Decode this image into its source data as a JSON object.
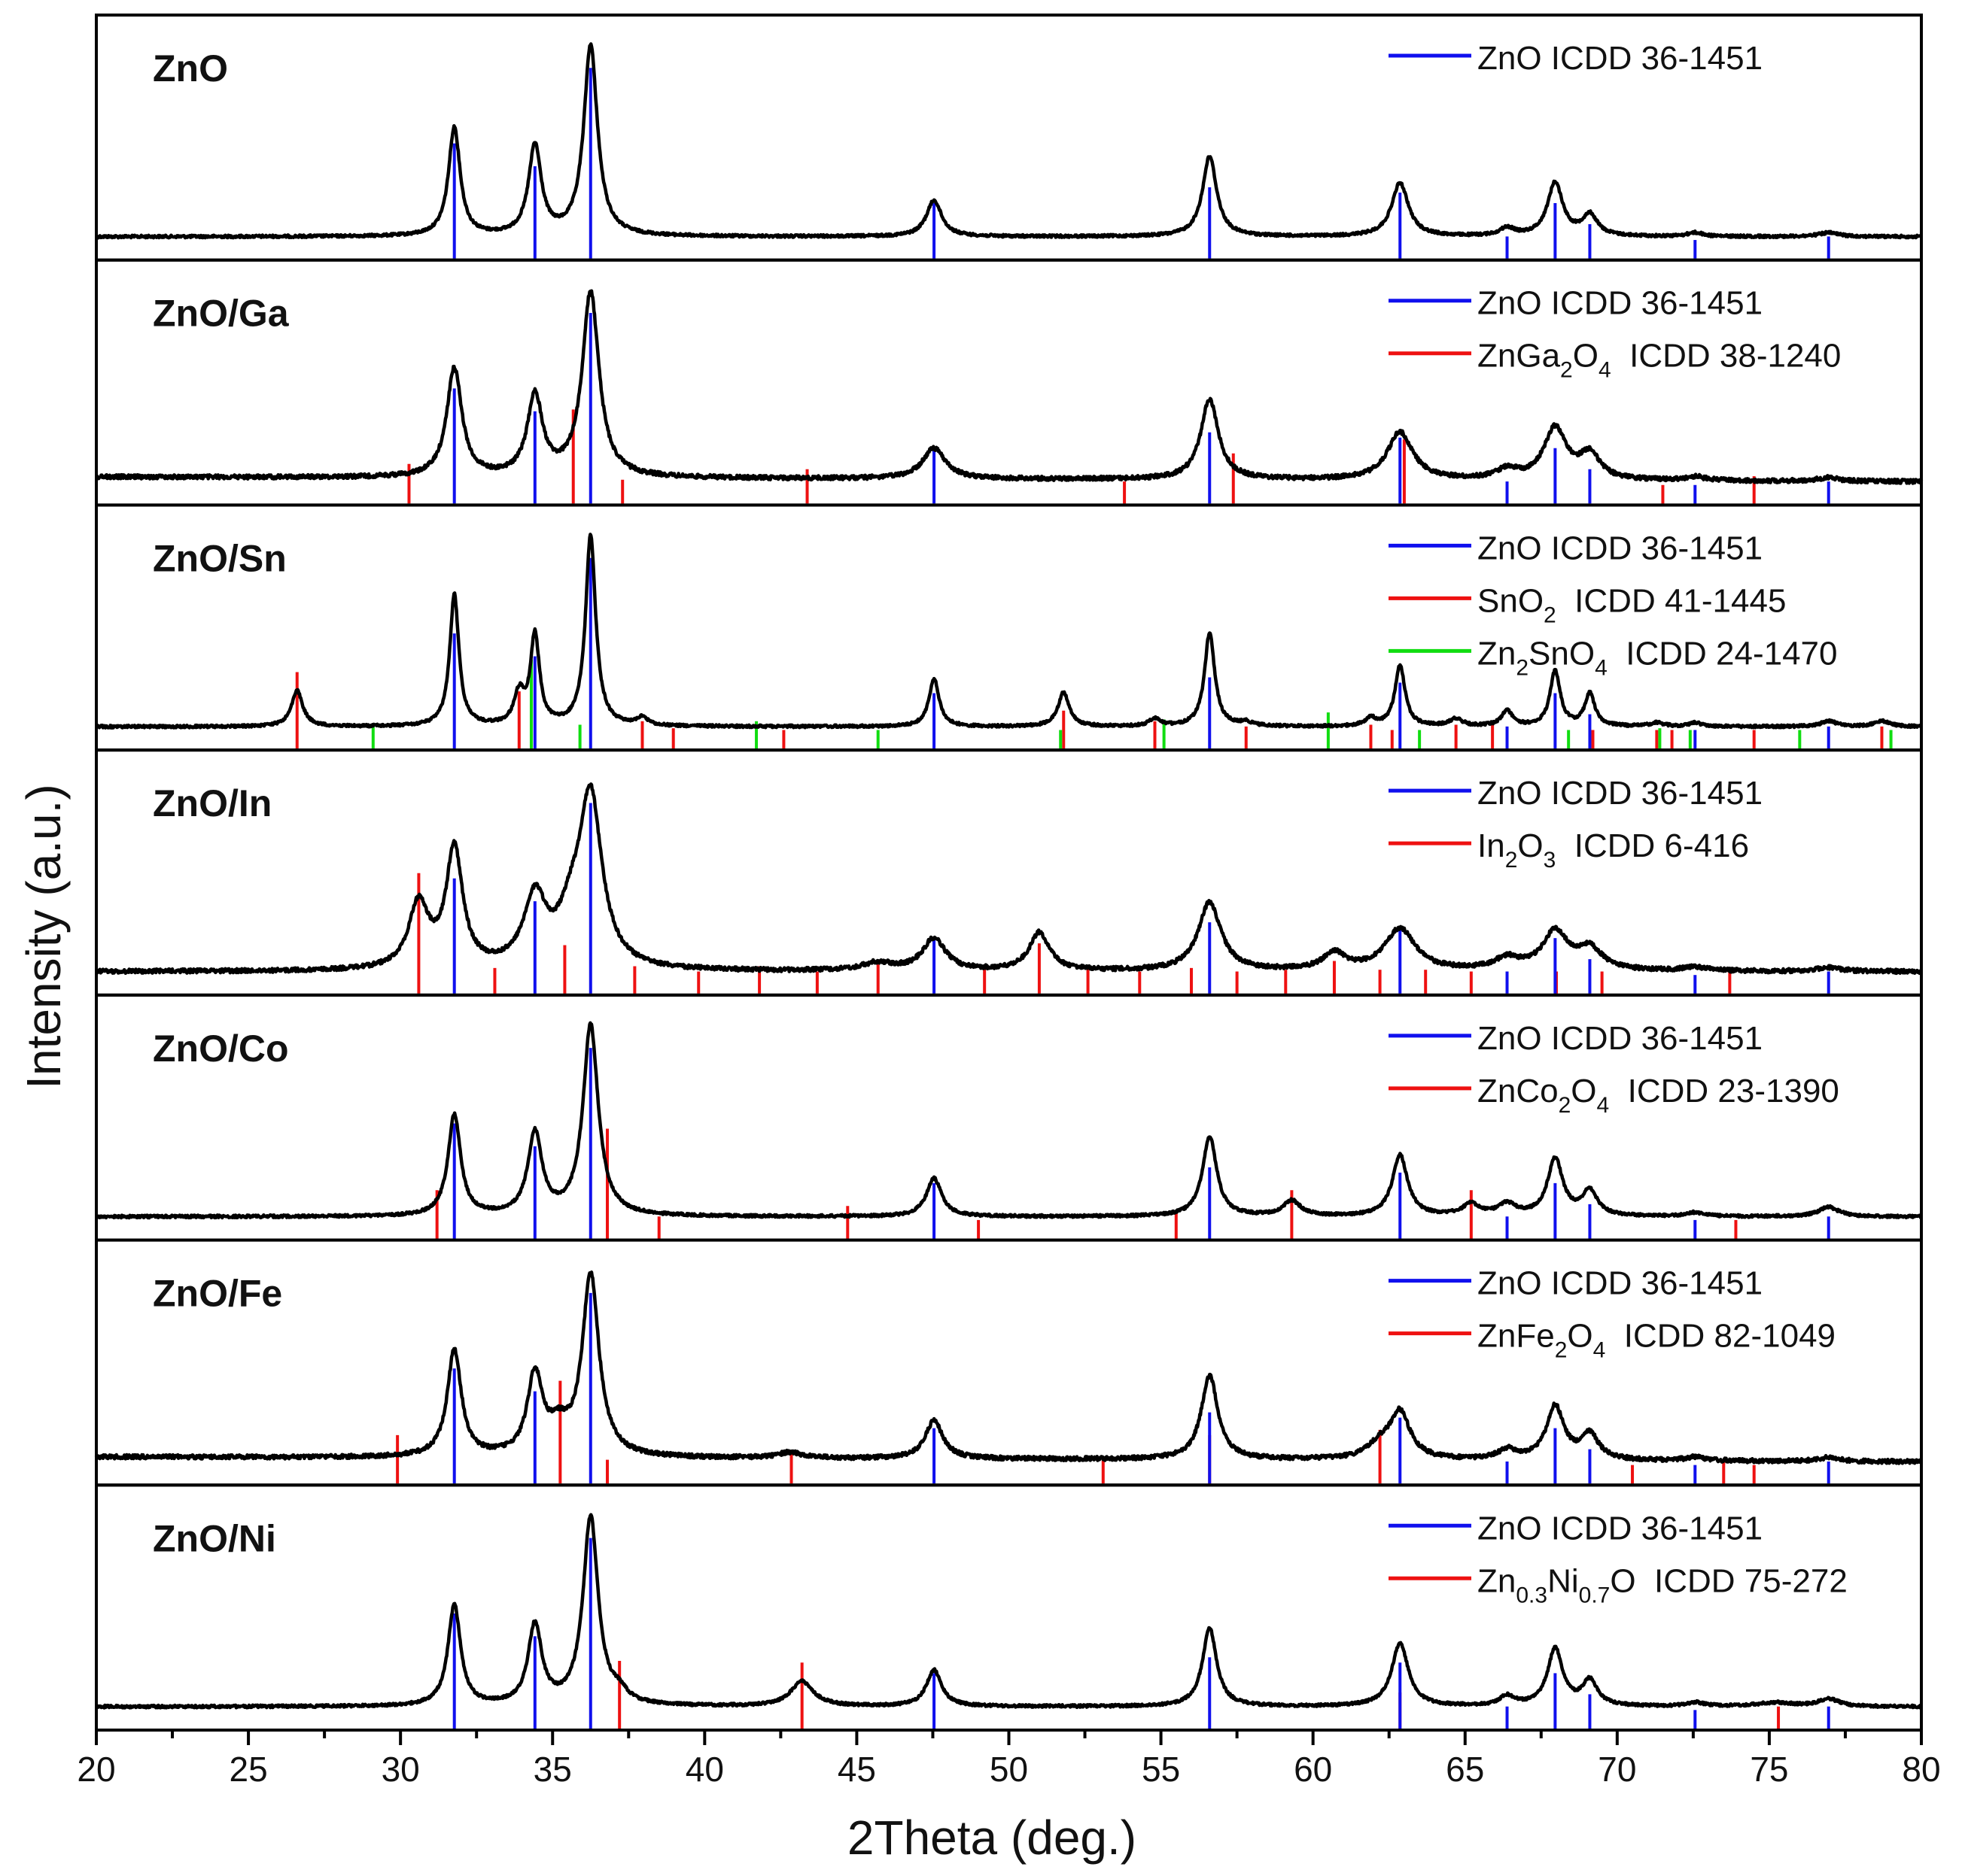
{
  "chart_data": {
    "type": "line",
    "xlabel": "2Theta (deg.)",
    "ylabel": "Intensity (a.u.)",
    "xlim": [
      20,
      80
    ],
    "xticks": [
      20,
      25,
      30,
      35,
      40,
      45,
      50,
      55,
      60,
      65,
      70,
      75,
      80
    ],
    "colors": {
      "ZnO": "#1010ee",
      "red": "#ee1111",
      "green": "#11dd11",
      "curve": "#000000"
    },
    "zno_ref": {
      "ticks": [
        31.77,
        34.42,
        36.25,
        47.54,
        56.6,
        62.86,
        66.38,
        67.96,
        69.1,
        72.56,
        76.95
      ],
      "heights": [
        0.57,
        0.44,
        1.0,
        0.23,
        0.32,
        0.29,
        0.04,
        0.23,
        0.11,
        0.02,
        0.04
      ]
    },
    "panels": [
      {
        "label": "ZnO",
        "legend": [
          {
            "color": "ZnO",
            "parts": [
              [
                "ZnO ICDD 36-1451",
                "n"
              ]
            ]
          }
        ],
        "peaks": [
          [
            31.77,
            0.57,
            0.23
          ],
          [
            34.42,
            0.47,
            0.25
          ],
          [
            36.25,
            1.0,
            0.27
          ],
          [
            47.54,
            0.19,
            0.3
          ],
          [
            56.6,
            0.42,
            0.28
          ],
          [
            62.86,
            0.28,
            0.33
          ],
          [
            66.38,
            0.04,
            0.3
          ],
          [
            67.96,
            0.28,
            0.3
          ],
          [
            69.1,
            0.11,
            0.3
          ],
          [
            72.56,
            0.02,
            0.3
          ],
          [
            76.95,
            0.02,
            0.4
          ]
        ],
        "phases": []
      },
      {
        "label": "ZnO/Ga",
        "legend": [
          {
            "color": "ZnO",
            "parts": [
              [
                "ZnO ICDD 36-1451",
                "n"
              ]
            ]
          },
          {
            "color": "red",
            "parts": [
              [
                "ZnGa",
                "n"
              ],
              [
                "2",
                "sub"
              ],
              [
                "O",
                "n"
              ],
              [
                "4",
                "sub"
              ],
              [
                "  ICDD 38-1240",
                "n"
              ]
            ]
          }
        ],
        "peaks": [
          [
            31.77,
            0.57,
            0.3
          ],
          [
            34.42,
            0.42,
            0.3
          ],
          [
            36.25,
            0.97,
            0.33
          ],
          [
            47.54,
            0.16,
            0.45
          ],
          [
            56.6,
            0.42,
            0.35
          ],
          [
            62.86,
            0.25,
            0.5
          ],
          [
            66.38,
            0.05,
            0.4
          ],
          [
            67.96,
            0.27,
            0.45
          ],
          [
            69.1,
            0.13,
            0.4
          ],
          [
            72.56,
            0.02,
            0.4
          ],
          [
            76.95,
            0.02,
            0.4
          ]
        ],
        "phases": [
          {
            "color": "red",
            "ticks": [
              30.28,
              35.68,
              37.3,
              43.37,
              53.8,
              57.38,
              63.0,
              71.5,
              74.5
            ],
            "heights": [
              0.14,
              0.45,
              0.05,
              0.11,
              0.04,
              0.2,
              0.28,
              0.02,
              0.07
            ]
          }
        ]
      },
      {
        "label": "ZnO/Sn",
        "legend": [
          {
            "color": "ZnO",
            "parts": [
              [
                "ZnO ICDD 36-1451",
                "n"
              ]
            ]
          },
          {
            "color": "red",
            "parts": [
              [
                "SnO",
                "n"
              ],
              [
                "2",
                "sub"
              ],
              [
                "  ICDD 41-1445",
                "n"
              ]
            ]
          },
          {
            "color": "green",
            "parts": [
              [
                "Zn",
                "n"
              ],
              [
                "2",
                "sub"
              ],
              [
                "SnO",
                "n"
              ],
              [
                "4",
                "sub"
              ],
              [
                "  ICDD 24-1470",
                "n"
              ]
            ]
          }
        ],
        "peaks": [
          [
            26.6,
            0.19,
            0.22
          ],
          [
            31.77,
            0.69,
            0.18
          ],
          [
            33.9,
            0.16,
            0.2
          ],
          [
            34.42,
            0.47,
            0.18
          ],
          [
            36.25,
            1.0,
            0.2
          ],
          [
            37.95,
            0.04,
            0.22
          ],
          [
            47.54,
            0.25,
            0.2
          ],
          [
            51.8,
            0.18,
            0.22
          ],
          [
            54.8,
            0.04,
            0.22
          ],
          [
            56.6,
            0.49,
            0.2
          ],
          [
            57.8,
            0.02,
            0.25
          ],
          [
            61.9,
            0.04,
            0.22
          ],
          [
            62.86,
            0.32,
            0.2
          ],
          [
            64.7,
            0.04,
            0.25
          ],
          [
            66.38,
            0.08,
            0.22
          ],
          [
            67.96,
            0.29,
            0.2
          ],
          [
            69.1,
            0.17,
            0.2
          ],
          [
            71.3,
            0.02,
            0.25
          ],
          [
            72.56,
            0.02,
            0.25
          ],
          [
            76.95,
            0.03,
            0.3
          ],
          [
            78.7,
            0.03,
            0.3
          ]
        ],
        "phases": [
          {
            "color": "red",
            "ticks": [
              26.6,
              33.9,
              37.95,
              38.97,
              42.6,
              51.8,
              54.8,
              57.8,
              61.9,
              62.6,
              64.7,
              65.9,
              69.2,
              71.3,
              71.8,
              74.5,
              78.7
            ],
            "heights": [
              0.35,
              0.24,
              0.07,
              0.03,
              0.02,
              0.13,
              0.07,
              0.04,
              0.05,
              0.02,
              0.05,
              0.06,
              0.02,
              0.02,
              0.02,
              0.02,
              0.04
            ]
          },
          {
            "color": "green",
            "ticks": [
              29.1,
              34.3,
              35.9,
              41.7,
              45.7,
              51.7,
              55.1,
              60.5,
              63.5,
              68.4,
              71.4,
              72.4,
              76.0,
              79.0
            ],
            "heights": [
              0.04,
              0.42,
              0.05,
              0.07,
              0.02,
              0.02,
              0.08,
              0.12,
              0.02,
              0.02,
              0.03,
              0.02,
              0.02,
              0.02
            ]
          }
        ]
      },
      {
        "label": "ZnO/In",
        "legend": [
          {
            "color": "ZnO",
            "parts": [
              [
                "ZnO ICDD 36-1451",
                "n"
              ]
            ]
          },
          {
            "color": "red",
            "parts": [
              [
                "In",
                "n"
              ],
              [
                "2",
                "sub"
              ],
              [
                "O",
                "n"
              ],
              [
                "3",
                "sub"
              ],
              [
                "  ICDD 6-416",
                "n"
              ]
            ]
          }
        ],
        "peaks": [
          [
            30.6,
            0.34,
            0.4
          ],
          [
            31.77,
            0.62,
            0.33
          ],
          [
            34.42,
            0.36,
            0.45
          ],
          [
            35.6,
            0.2,
            0.5
          ],
          [
            36.25,
            0.88,
            0.45
          ],
          [
            45.7,
            0.04,
            0.6
          ],
          [
            47.54,
            0.17,
            0.45
          ],
          [
            51.0,
            0.2,
            0.4
          ],
          [
            56.6,
            0.36,
            0.45
          ],
          [
            60.7,
            0.09,
            0.45
          ],
          [
            62.86,
            0.22,
            0.6
          ],
          [
            66.38,
            0.06,
            0.5
          ],
          [
            67.96,
            0.2,
            0.5
          ],
          [
            69.1,
            0.11,
            0.5
          ],
          [
            72.56,
            0.02,
            0.5
          ],
          [
            76.95,
            0.02,
            0.5
          ]
        ],
        "phases": [
          {
            "color": "red",
            "ticks": [
              30.6,
              33.1,
              35.4,
              37.7,
              39.8,
              41.8,
              43.7,
              45.7,
              49.2,
              51.0,
              52.6,
              54.3,
              56.0,
              57.5,
              59.1,
              60.7,
              62.2,
              63.7,
              65.2,
              68.0,
              69.5,
              73.7
            ],
            "heights": [
              0.6,
              0.06,
              0.19,
              0.07,
              0.04,
              0.07,
              0.04,
              0.08,
              0.06,
              0.2,
              0.06,
              0.04,
              0.06,
              0.04,
              0.05,
              0.1,
              0.05,
              0.05,
              0.04,
              0.04,
              0.04,
              0.04
            ]
          }
        ]
      },
      {
        "label": "ZnO/Co",
        "legend": [
          {
            "color": "ZnO",
            "parts": [
              [
                "ZnO ICDD 36-1451",
                "n"
              ]
            ]
          },
          {
            "color": "red",
            "parts": [
              [
                "ZnCo",
                "n"
              ],
              [
                "2",
                "sub"
              ],
              [
                "O",
                "n"
              ],
              [
                "4",
                "sub"
              ],
              [
                "  ICDD 23-1390",
                "n"
              ]
            ]
          }
        ],
        "peaks": [
          [
            31.77,
            0.53,
            0.25
          ],
          [
            34.42,
            0.43,
            0.28
          ],
          [
            36.25,
            1.0,
            0.3
          ],
          [
            47.54,
            0.2,
            0.3
          ],
          [
            56.6,
            0.42,
            0.28
          ],
          [
            59.3,
            0.08,
            0.35
          ],
          [
            62.86,
            0.32,
            0.3
          ],
          [
            65.2,
            0.06,
            0.35
          ],
          [
            66.38,
            0.06,
            0.35
          ],
          [
            67.96,
            0.3,
            0.3
          ],
          [
            69.1,
            0.13,
            0.3
          ],
          [
            72.56,
            0.02,
            0.35
          ],
          [
            76.95,
            0.05,
            0.4
          ]
        ],
        "phases": [
          {
            "color": "red",
            "ticks": [
              31.2,
              36.8,
              38.5,
              44.7,
              49.0,
              55.5,
              59.3,
              65.2,
              73.9
            ],
            "heights": [
              0.19,
              0.54,
              0.04,
              0.1,
              0.02,
              0.06,
              0.19,
              0.19,
              0.02
            ]
          }
        ]
      },
      {
        "label": "ZnO/Fe",
        "legend": [
          {
            "color": "ZnO",
            "parts": [
              [
                "ZnO ICDD 36-1451",
                "n"
              ]
            ]
          },
          {
            "color": "red",
            "parts": [
              [
                "ZnFe",
                "n"
              ],
              [
                "2",
                "sub"
              ],
              [
                "O",
                "n"
              ],
              [
                "4",
                "sub"
              ],
              [
                "  ICDD 82-1049",
                "n"
              ]
            ]
          }
        ],
        "peaks": [
          [
            31.77,
            0.56,
            0.28
          ],
          [
            34.42,
            0.42,
            0.3
          ],
          [
            35.2,
            0.12,
            0.4
          ],
          [
            36.25,
            0.95,
            0.33
          ],
          [
            42.8,
            0.03,
            0.5
          ],
          [
            47.54,
            0.2,
            0.35
          ],
          [
            56.6,
            0.44,
            0.33
          ],
          [
            62.2,
            0.07,
            0.5
          ],
          [
            62.86,
            0.24,
            0.4
          ],
          [
            66.38,
            0.05,
            0.35
          ],
          [
            67.96,
            0.28,
            0.35
          ],
          [
            69.1,
            0.13,
            0.35
          ],
          [
            72.56,
            0.02,
            0.35
          ],
          [
            76.95,
            0.02,
            0.4
          ]
        ],
        "phases": [
          {
            "color": "red",
            "ticks": [
              29.9,
              35.25,
              36.8,
              42.85,
              53.1,
              56.6,
              62.2,
              70.5,
              73.5,
              74.5
            ],
            "heights": [
              0.19,
              0.5,
              0.05,
              0.1,
              0.06,
              0.19,
              0.22,
              0.02,
              0.04,
              0.02
            ]
          }
        ]
      },
      {
        "label": "ZnO/Ni",
        "legend": [
          {
            "color": "ZnO",
            "parts": [
              [
                "ZnO ICDD 36-1451",
                "n"
              ]
            ]
          },
          {
            "color": "red",
            "parts": [
              [
                "Zn",
                "n"
              ],
              [
                "0.3",
                "sub"
              ],
              [
                "Ni",
                "n"
              ],
              [
                "0.7",
                "sub"
              ],
              [
                "O  ICDD 75-272",
                "n"
              ]
            ]
          }
        ],
        "peaks": [
          [
            31.77,
            0.53,
            0.25
          ],
          [
            34.42,
            0.42,
            0.27
          ],
          [
            36.25,
            0.99,
            0.3
          ],
          [
            37.2,
            0.05,
            0.3
          ],
          [
            43.2,
            0.13,
            0.45
          ],
          [
            47.54,
            0.19,
            0.3
          ],
          [
            56.6,
            0.41,
            0.28
          ],
          [
            62.86,
            0.33,
            0.33
          ],
          [
            66.38,
            0.05,
            0.3
          ],
          [
            67.96,
            0.3,
            0.3
          ],
          [
            69.1,
            0.13,
            0.3
          ],
          [
            72.56,
            0.02,
            0.35
          ],
          [
            75.2,
            0.02,
            0.7
          ],
          [
            76.95,
            0.04,
            0.4
          ]
        ],
        "phases": [
          {
            "color": "red",
            "ticks": [
              37.2,
              43.2,
              62.86,
              75.3
            ],
            "heights": [
              0.3,
              0.29,
              0.12,
              0.04
            ]
          }
        ]
      }
    ]
  }
}
